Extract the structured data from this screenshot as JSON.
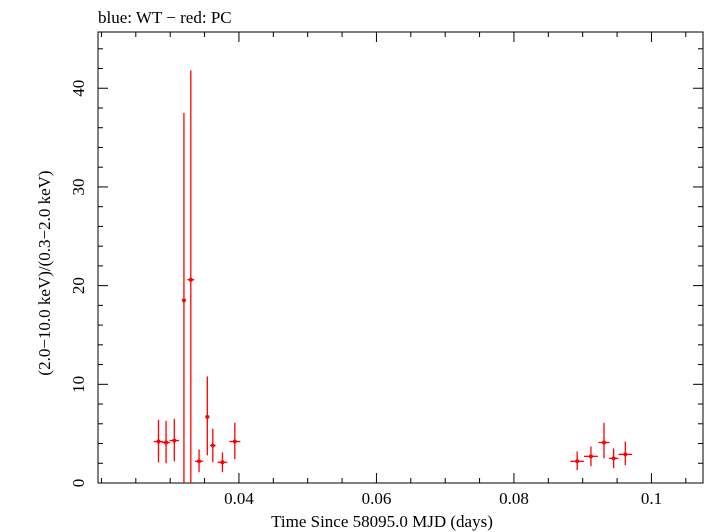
{
  "chart_data": {
    "type": "scatter",
    "title": "blue: WT − red: PC",
    "xlabel": "Time Since 58095.0 MJD (days)",
    "ylabel": "(2.0−10.0 keV)/(0.3−2.0 keV)",
    "xlim": [
      0.0195,
      0.1075
    ],
    "ylim": [
      0,
      45.7
    ],
    "x_ticks": [
      {
        "value": 0.04,
        "label": "0.04"
      },
      {
        "value": 0.06,
        "label": "0.06"
      },
      {
        "value": 0.08,
        "label": "0.08"
      },
      {
        "value": 0.1,
        "label": "0.1"
      }
    ],
    "y_ticks": [
      {
        "value": 0,
        "label": "0"
      },
      {
        "value": 10,
        "label": "10"
      },
      {
        "value": 20,
        "label": "20"
      },
      {
        "value": 30,
        "label": "30"
      },
      {
        "value": 40,
        "label": "40"
      }
    ],
    "series": [
      {
        "name": "PC",
        "color": "#ff0000",
        "points": [
          {
            "x": 0.0283,
            "xerr": 0.0007,
            "y": 4.2,
            "ylo": 2.1,
            "yhi": 6.4
          },
          {
            "x": 0.0294,
            "xerr": 0.0006,
            "y": 4.1,
            "ylo": 2.0,
            "yhi": 6.3
          },
          {
            "x": 0.0306,
            "xerr": 0.0007,
            "y": 4.3,
            "ylo": 2.2,
            "yhi": 6.5
          },
          {
            "x": 0.032,
            "xerr": 0.0002,
            "y": 18.5,
            "ylo": 0,
            "yhi": 37.5
          },
          {
            "x": 0.033,
            "xerr": 0.0005,
            "y": 20.6,
            "ylo": 0,
            "yhi": 41.8
          },
          {
            "x": 0.0342,
            "xerr": 0.0006,
            "y": 2.2,
            "ylo": 1.1,
            "yhi": 3.4
          },
          {
            "x": 0.0354,
            "xerr": 0.0003,
            "y": 6.7,
            "ylo": 2.8,
            "yhi": 10.8
          },
          {
            "x": 0.0362,
            "xerr": 0.0004,
            "y": 3.8,
            "ylo": 2.1,
            "yhi": 5.5
          },
          {
            "x": 0.0376,
            "xerr": 0.0007,
            "y": 2.1,
            "ylo": 1.1,
            "yhi": 3.1
          },
          {
            "x": 0.0394,
            "xerr": 0.0008,
            "y": 4.2,
            "ylo": 2.4,
            "yhi": 6.1
          },
          {
            "x": 0.0892,
            "xerr": 0.001,
            "y": 2.2,
            "ylo": 1.3,
            "yhi": 3.2
          },
          {
            "x": 0.0912,
            "xerr": 0.001,
            "y": 2.7,
            "ylo": 1.7,
            "yhi": 3.7
          },
          {
            "x": 0.0931,
            "xerr": 0.0008,
            "y": 4.1,
            "ylo": 2.5,
            "yhi": 6.1
          },
          {
            "x": 0.0945,
            "xerr": 0.0007,
            "y": 2.5,
            "ylo": 1.5,
            "yhi": 3.5
          },
          {
            "x": 0.0962,
            "xerr": 0.001,
            "y": 2.9,
            "ylo": 1.8,
            "yhi": 4.2
          }
        ]
      }
    ]
  }
}
